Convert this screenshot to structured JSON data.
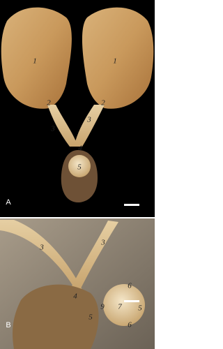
{
  "panels": [
    {
      "label": "A",
      "annotations": [
        "1",
        "1",
        "2",
        "2",
        "3",
        "3",
        "4",
        "5"
      ]
    },
    {
      "label": "B",
      "annotations": [
        "3",
        "3",
        "4",
        "9",
        "7",
        "5",
        "6",
        "5",
        "6"
      ]
    }
  ]
}
